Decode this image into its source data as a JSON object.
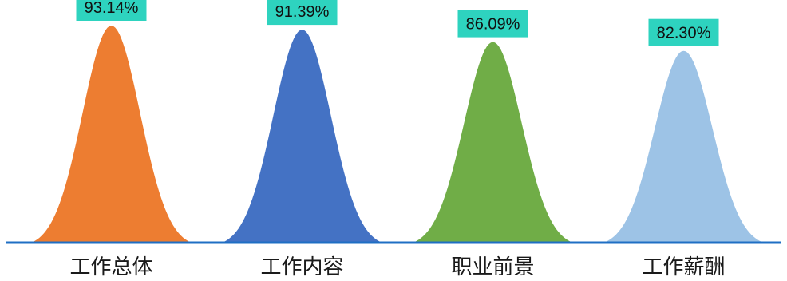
{
  "chart_data": {
    "type": "area",
    "categories": [
      "工作总体",
      "工作内容",
      "职业前景",
      "工作薪酬"
    ],
    "values": [
      93.14,
      91.39,
      86.09,
      82.3
    ],
    "value_labels": [
      "93.14%",
      "91.39%",
      "86.09%",
      "82.30%"
    ],
    "colors": [
      "#ED7D31",
      "#4472C4",
      "#70AD47",
      "#9DC3E6"
    ],
    "label_box_color": "#2ED3BF",
    "baseline_color": "#1F6FC4",
    "ylim": [
      0,
      100
    ],
    "grid": false,
    "title": "",
    "xlabel": "",
    "ylabel": ""
  }
}
